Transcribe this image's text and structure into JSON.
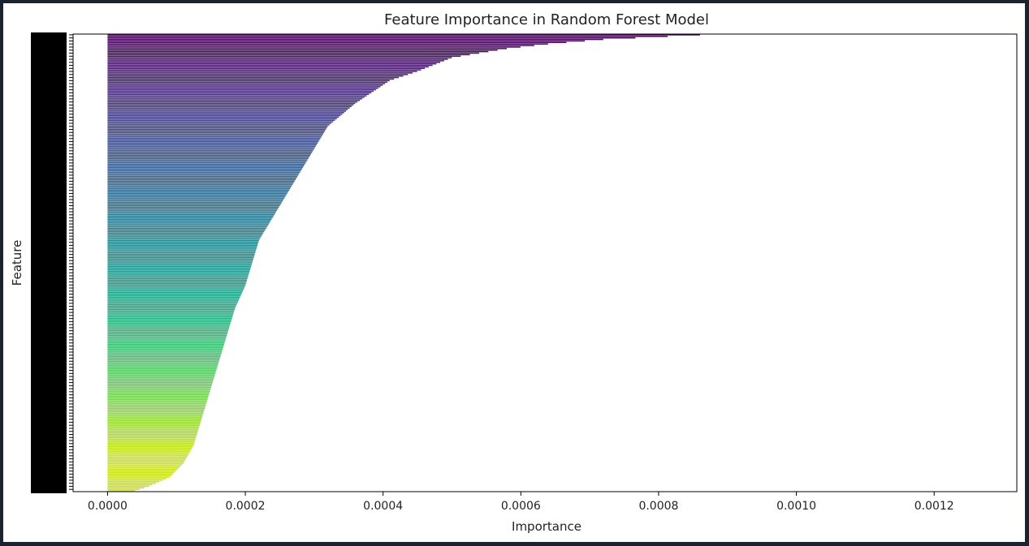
{
  "chart_data": {
    "type": "bar",
    "orientation": "horizontal",
    "title": "Feature Importance in Random Forest Model",
    "xlabel": "Importance",
    "ylabel": "Feature",
    "xlim": [
      -5e-05,
      0.00132
    ],
    "xticks": [
      0.0,
      0.0002,
      0.0004,
      0.0006,
      0.0008,
      0.001,
      0.0012
    ],
    "xtick_labels": [
      "0.0000",
      "0.0002",
      "0.0004",
      "0.0006",
      "0.0008",
      "0.0010",
      "0.0012"
    ],
    "legend": "none",
    "grid": false,
    "colormap": "viridis",
    "n_features": 300,
    "value_profile": [
      [
        0.0,
        0.00086
      ],
      [
        0.01,
        0.00072
      ],
      [
        0.02,
        0.00064
      ],
      [
        0.03,
        0.00058
      ],
      [
        0.05,
        0.0005
      ],
      [
        0.08,
        0.00045
      ],
      [
        0.1,
        0.00041
      ],
      [
        0.15,
        0.00036
      ],
      [
        0.2,
        0.00032
      ],
      [
        0.25,
        0.0003
      ],
      [
        0.3,
        0.00028
      ],
      [
        0.35,
        0.00026
      ],
      [
        0.4,
        0.00024
      ],
      [
        0.45,
        0.00022
      ],
      [
        0.5,
        0.00021
      ],
      [
        0.55,
        0.0002
      ],
      [
        0.6,
        0.000185
      ],
      [
        0.65,
        0.000175
      ],
      [
        0.7,
        0.000165
      ],
      [
        0.75,
        0.000155
      ],
      [
        0.8,
        0.000145
      ],
      [
        0.85,
        0.000135
      ],
      [
        0.9,
        0.000125
      ],
      [
        0.94,
        0.00011
      ],
      [
        0.97,
        9e-05
      ],
      [
        0.99,
        6e-05
      ],
      [
        1.0,
        4e-05
      ]
    ]
  }
}
